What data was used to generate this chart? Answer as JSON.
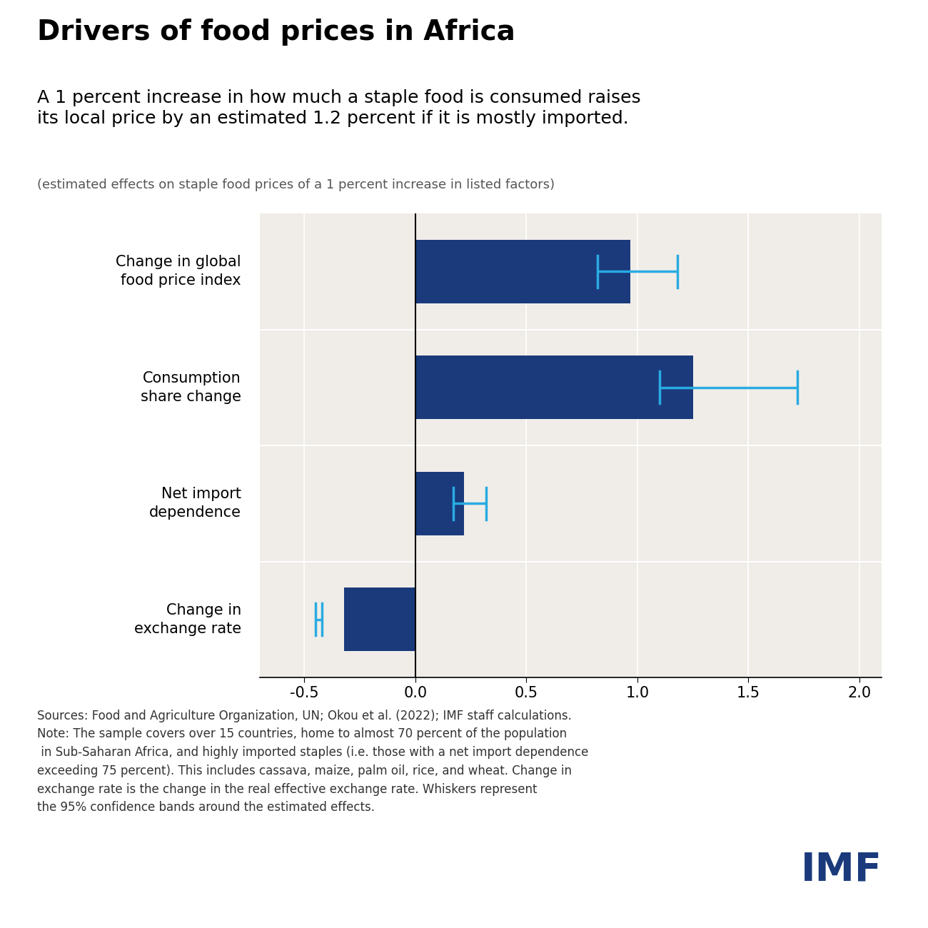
{
  "title": "Drivers of food prices in Africa",
  "subtitle": "A 1 percent increase in how much a staple food is consumed raises\nits local price by an estimated 1.2 percent if it is mostly imported.",
  "caption": "(estimated effects on staple food prices of a 1 percent increase in listed factors)",
  "categories": [
    "Change in global\nfood price index",
    "Consumption\nshare change",
    "Net import\ndependence",
    "Change in\nexchange rate"
  ],
  "values": [
    0.97,
    1.25,
    0.22,
    -0.32
  ],
  "error_lower": [
    0.82,
    1.1,
    0.17,
    -0.45
  ],
  "error_upper": [
    1.18,
    1.72,
    0.32,
    -0.42
  ],
  "bar_color": "#1a3a7c",
  "error_color": "#29abe2",
  "background_color": "#ffffff",
  "plot_bg_color": "#f0ede8",
  "xlim": [
    -0.7,
    2.1
  ],
  "xticks": [
    -0.5,
    0.0,
    0.5,
    1.0,
    1.5,
    2.0
  ],
  "xtick_labels": [
    "-0.5",
    "0.0",
    "0.5",
    "1.0",
    "1.5",
    "2.0"
  ],
  "footnote": "Sources: Food and Agriculture Organization, UN; Okou et al. (2022); IMF staff calculations.\nNote: The sample covers over 15 countries, home to almost 70 percent of the population\n in Sub-Saharan Africa, and highly imported staples (i.e. those with a net import dependence\nexceeding 75 percent). This includes cassava, maize, palm oil, rice, and wheat. Change in\nexchange rate is the change in the real effective exchange rate. Whiskers represent\nthe 95% confidence bands around the estimated effects.",
  "imf_color": "#1a3a7c",
  "title_fontsize": 28,
  "subtitle_fontsize": 18,
  "caption_fontsize": 13,
  "tick_fontsize": 15,
  "label_fontsize": 15,
  "footnote_fontsize": 12,
  "bar_height": 0.55
}
